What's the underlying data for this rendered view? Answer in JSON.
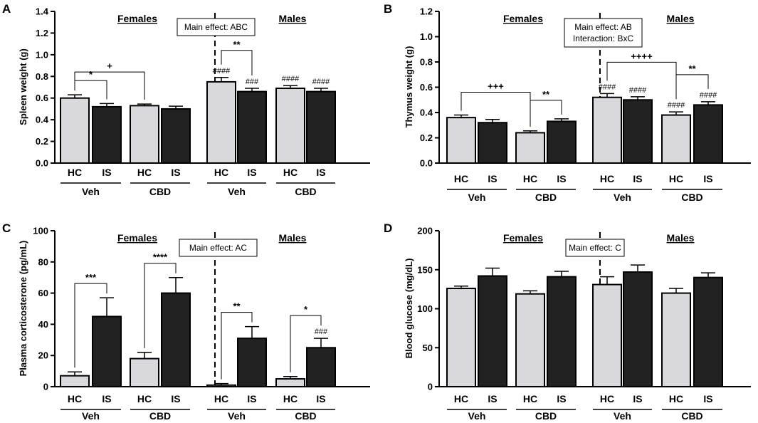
{
  "chart_data": [
    {
      "type": "bar",
      "panel": "A",
      "ylabel": "Spleen weight (g)",
      "ylim": [
        0,
        1.4
      ],
      "yticks": [
        "0.0",
        "0.2",
        "0.4",
        "0.6",
        "0.8",
        "1.0",
        "1.2",
        "1.4"
      ],
      "categories": [
        "HC",
        "IS",
        "HC",
        "IS",
        "HC",
        "IS",
        "HC",
        "IS"
      ],
      "groups": [
        "Veh",
        "CBD",
        "Veh",
        "CBD"
      ],
      "sex_labels": [
        "Females",
        "Males"
      ],
      "box": [
        "Main effect: ABC"
      ],
      "series": [
        {
          "name": "Spleen weight",
          "values": [
            0.6,
            0.52,
            0.53,
            0.5,
            0.75,
            0.66,
            0.69,
            0.66
          ],
          "errors": [
            0.03,
            0.03,
            0.015,
            0.025,
            0.04,
            0.03,
            0.025,
            0.03
          ]
        }
      ],
      "annotations": [
        {
          "type": "bracket",
          "from": 0,
          "to": 1,
          "label": "*"
        },
        {
          "type": "bracket",
          "from": 0,
          "to": 2,
          "label": "+"
        },
        {
          "type": "bracket",
          "from": 4,
          "to": 5,
          "label": "**"
        },
        {
          "type": "above",
          "bar": 4,
          "label": "####"
        },
        {
          "type": "above",
          "bar": 5,
          "label": "###"
        },
        {
          "type": "above",
          "bar": 6,
          "label": "####"
        },
        {
          "type": "above",
          "bar": 7,
          "label": "####"
        }
      ]
    },
    {
      "type": "bar",
      "panel": "B",
      "ylabel": "Thymus  weight (g)",
      "ylim": [
        0,
        1.2
      ],
      "yticks": [
        "0.0",
        "0.2",
        "0.4",
        "0.6",
        "0.8",
        "1.0",
        "1.2"
      ],
      "categories": [
        "HC",
        "IS",
        "HC",
        "IS",
        "HC",
        "IS",
        "HC",
        "IS"
      ],
      "groups": [
        "Veh",
        "CBD",
        "Veh",
        "CBD"
      ],
      "sex_labels": [
        "Females",
        "Males"
      ],
      "box": [
        "Main effect: AB",
        "Interaction: BxC"
      ],
      "series": [
        {
          "name": "Thymus weight",
          "values": [
            0.36,
            0.32,
            0.24,
            0.33,
            0.52,
            0.5,
            0.38,
            0.46
          ],
          "errors": [
            0.02,
            0.025,
            0.015,
            0.02,
            0.03,
            0.025,
            0.025,
            0.025
          ]
        }
      ],
      "annotations": [
        {
          "type": "bracket",
          "from": 0,
          "to": 2,
          "label": "+++"
        },
        {
          "type": "bracket",
          "from": 2,
          "to": 3,
          "label": "**"
        },
        {
          "type": "bracket",
          "from": 4,
          "to": 6,
          "label": "++++"
        },
        {
          "type": "bracket",
          "from": 6,
          "to": 7,
          "label": "**"
        },
        {
          "type": "above",
          "bar": 4,
          "label": "####"
        },
        {
          "type": "above",
          "bar": 5,
          "label": "####"
        },
        {
          "type": "above",
          "bar": 6,
          "label": "####"
        },
        {
          "type": "above",
          "bar": 7,
          "label": "####"
        }
      ]
    },
    {
      "type": "bar",
      "panel": "C",
      "ylabel": "Plasma corticosterone (pg/mL)",
      "ylim": [
        0,
        100
      ],
      "yticks": [
        "0",
        "20",
        "40",
        "60",
        "80",
        "100"
      ],
      "categories": [
        "HC",
        "IS",
        "HC",
        "IS",
        "HC",
        "IS",
        "HC",
        "IS"
      ],
      "groups": [
        "Veh",
        "CBD",
        "Veh",
        "CBD"
      ],
      "sex_labels": [
        "Females",
        "Males"
      ],
      "box": [
        "Main effect: AC"
      ],
      "series": [
        {
          "name": "Plasma corticosterone",
          "values": [
            7,
            45,
            18,
            60,
            1,
            31,
            5,
            25
          ],
          "errors": [
            2.5,
            12,
            4,
            10,
            1,
            7.5,
            1.5,
            6
          ]
        }
      ],
      "annotations": [
        {
          "type": "bracket",
          "from": 0,
          "to": 1,
          "label": "***"
        },
        {
          "type": "bracket",
          "from": 2,
          "to": 3,
          "label": "****"
        },
        {
          "type": "bracket",
          "from": 4,
          "to": 5,
          "label": "**"
        },
        {
          "type": "bracket",
          "from": 6,
          "to": 7,
          "label": "*"
        },
        {
          "type": "above",
          "bar": 7,
          "label": "###"
        }
      ]
    },
    {
      "type": "bar",
      "panel": "D",
      "ylabel": "Blood glucose (mg/dL)",
      "ylim": [
        0,
        200
      ],
      "yticks": [
        "0",
        "50",
        "100",
        "150",
        "200"
      ],
      "categories": [
        "HC",
        "IS",
        "HC",
        "IS",
        "HC",
        "IS",
        "HC",
        "IS"
      ],
      "groups": [
        "Veh",
        "CBD",
        "Veh",
        "CBD"
      ],
      "sex_labels": [
        "Females",
        "Males"
      ],
      "box": [
        "Main effect: C"
      ],
      "series": [
        {
          "name": "Blood glucose",
          "values": [
            126,
            142,
            119,
            141,
            131,
            147,
            120,
            140
          ],
          "errors": [
            3,
            10,
            4,
            7,
            10,
            9,
            6,
            6
          ]
        }
      ],
      "annotations": []
    }
  ],
  "colors": {
    "hc_fill": "#d9d9dd",
    "is_fill": "#222222",
    "stroke": "#000000"
  }
}
